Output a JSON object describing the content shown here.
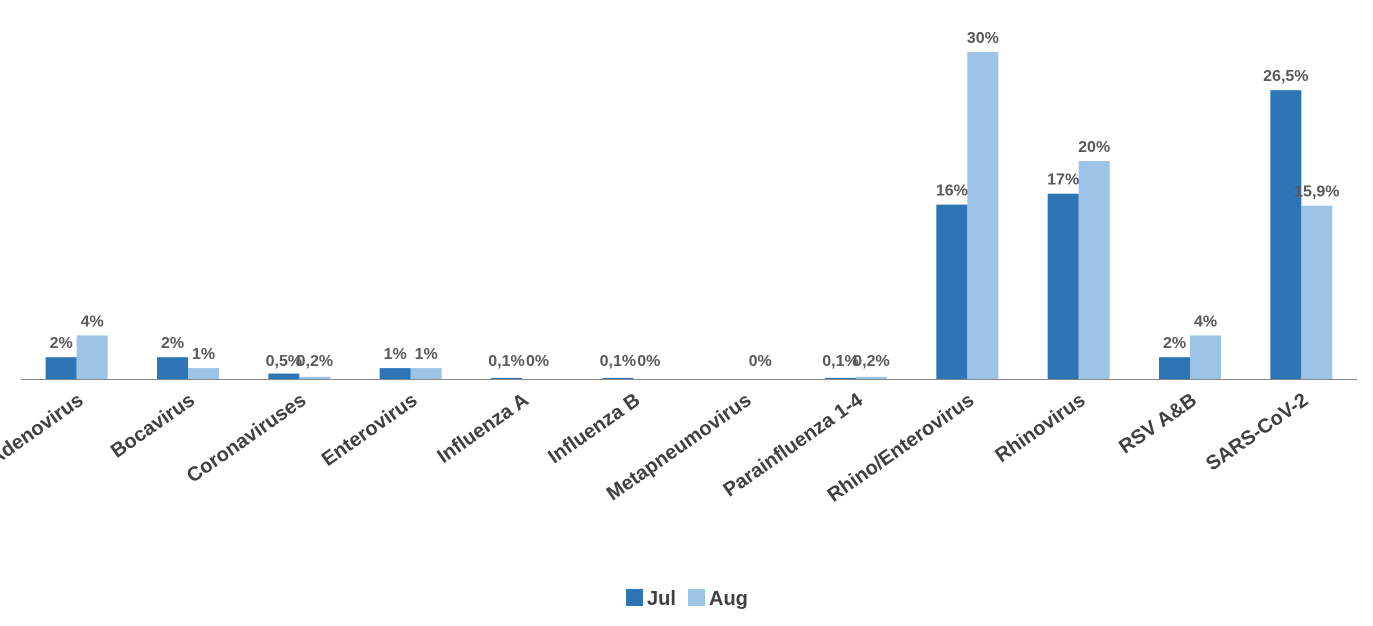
{
  "chart_data": {
    "type": "bar",
    "title": "",
    "xlabel": "",
    "ylabel": "",
    "ylim": [
      0,
      32
    ],
    "grid": false,
    "legend_position": "bottom",
    "categories": [
      "Adenovirus",
      "Bocavirus",
      "Coronaviruses",
      "Enterovirus",
      "Influenza A",
      "Influenza B",
      "Metapneumovirus",
      "Parainfluenza 1-4",
      "Rhino/Enterovirus",
      "Rhinovirus",
      "RSV A&B",
      "SARS-CoV-2"
    ],
    "series": [
      {
        "name": "Jul",
        "color": "#2E75B6",
        "values": [
          2,
          2,
          0.5,
          1,
          0.1,
          0.1,
          null,
          0.1,
          16,
          17,
          2,
          26.5
        ],
        "labels": [
          "2%",
          "2%",
          "0,5%",
          "1%",
          "0,1%",
          "0,1%",
          "",
          "0,1%",
          "16%",
          "17%",
          "2%",
          "26,5%"
        ]
      },
      {
        "name": "Aug",
        "color": "#9DC3E6",
        "values": [
          4,
          1,
          0.2,
          1,
          0,
          0,
          0,
          0.2,
          30,
          20,
          4,
          15.9
        ],
        "labels": [
          "4%",
          "1%",
          "0,2%",
          "1%",
          "0%",
          "0%",
          "0%",
          "0,2%",
          "30%",
          "20%",
          "4%",
          "15,9%"
        ]
      }
    ]
  }
}
